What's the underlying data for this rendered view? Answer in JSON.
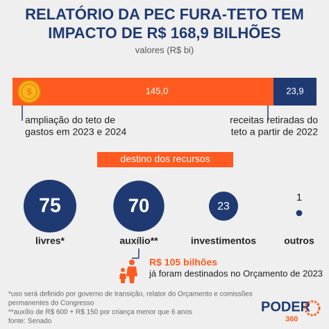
{
  "title": [
    "RELATÓRIO DA PEC FURA-TETO TEM",
    "IMPACTO DE R$ 168,9 BILHÕES"
  ],
  "subtitle": "valores (R$ bi)",
  "chart_data": [
    {
      "type": "stacked_bar",
      "categories": [
        [
          "ampliação do teto de",
          "gastos em 2023 e 2024"
        ],
        [
          "receitas retiradas do",
          "teto a partir de 2022"
        ]
      ],
      "values": [
        145.0,
        23.9
      ],
      "value_labels": [
        "145,0",
        "23,9"
      ],
      "colors": [
        "#ff5a1f",
        "#1f3a73"
      ]
    },
    {
      "type": "bubble",
      "title": "destino dos recursos",
      "categories": [
        "livres*",
        "auxílio**",
        "investimentos",
        "outros"
      ],
      "values": [
        75,
        70,
        23,
        1
      ],
      "color": "#1f3a73"
    }
  ],
  "annotation": {
    "title": "R$ 105 bilhões",
    "text": "já foram destinados no Orçamento de 2023"
  },
  "footnotes": [
    "*uso será definido por governo de transição, relator do Orçamento e comissões",
    "permanentes do Congresso",
    "**auxílio de R$ 600 + R$ 150 por criança menor que 6 anos",
    "fonte: Senado"
  ],
  "logo": {
    "name": "PODER",
    "number": "360"
  }
}
